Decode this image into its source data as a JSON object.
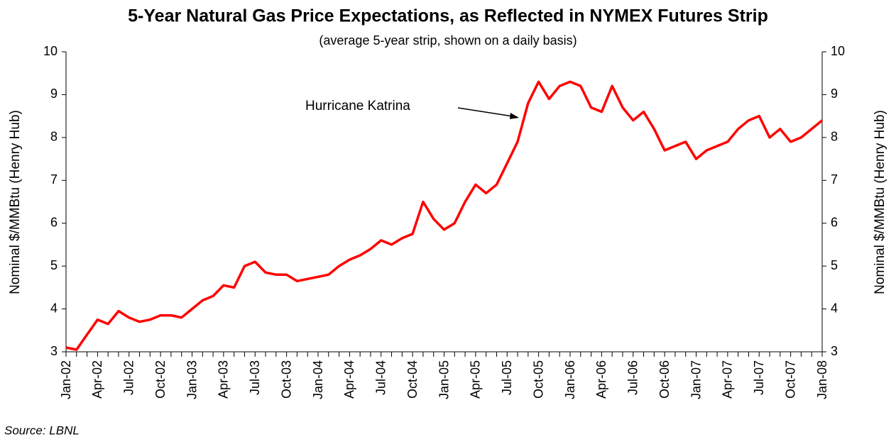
{
  "chart_data": {
    "type": "line",
    "title": "5-Year Natural Gas Price Expectations, as Reflected in NYMEX Futures Strip",
    "subtitle": "(average 5-year strip, shown on a daily basis)",
    "ylabel": "Nominal $/MMBtu (Henry Hub)",
    "y2label": "Nominal $/MMBtu (Henry Hub)",
    "annotation": "Hurricane Katrina",
    "source": "Source:  LBNL",
    "color": "#ff0000",
    "categories": [
      "Jan-02",
      null,
      null,
      "Apr-02",
      null,
      null,
      "Jul-02",
      null,
      null,
      "Oct-02",
      null,
      null,
      "Jan-03",
      null,
      null,
      "Apr-03",
      null,
      null,
      "Jul-03",
      null,
      null,
      "Oct-03",
      null,
      null,
      "Jan-04",
      null,
      null,
      "Apr-04",
      null,
      null,
      "Jul-04",
      null,
      null,
      "Oct-04",
      null,
      null,
      "Jan-05",
      null,
      null,
      "Apr-05",
      null,
      null,
      "Jul-05",
      null,
      null,
      "Oct-05",
      null,
      null,
      "Jan-06",
      null,
      null,
      "Apr-06",
      null,
      null,
      "Jul-06",
      null,
      null,
      "Oct-06",
      null,
      null,
      "Jan-07",
      null,
      null,
      "Apr-07",
      null,
      null,
      "Jul-07",
      null,
      null,
      "Oct-07",
      null,
      null,
      "Jan-08"
    ],
    "values": [
      3.1,
      3.05,
      3.4,
      3.75,
      3.65,
      3.95,
      3.8,
      3.7,
      3.75,
      3.85,
      3.85,
      3.8,
      4.0,
      4.2,
      4.3,
      4.55,
      4.5,
      5.0,
      5.1,
      4.85,
      4.8,
      4.8,
      4.65,
      4.7,
      4.75,
      4.8,
      5.0,
      5.15,
      5.25,
      5.4,
      5.6,
      5.5,
      5.65,
      5.75,
      6.5,
      6.1,
      5.85,
      6.0,
      6.5,
      6.9,
      6.7,
      6.9,
      7.4,
      7.9,
      8.8,
      9.3,
      8.9,
      9.2,
      9.3,
      9.2,
      8.7,
      8.6,
      9.2,
      8.7,
      8.4,
      8.6,
      8.2,
      7.7,
      7.8,
      7.9,
      7.5,
      7.7,
      7.8,
      7.9,
      8.2,
      8.4,
      8.5,
      8.0,
      8.2,
      7.9,
      8.0,
      8.2,
      8.4
    ],
    "ylim": [
      3,
      10
    ],
    "yticks": [
      3,
      4,
      5,
      6,
      7,
      8,
      9,
      10
    ],
    "y2lim": [
      3,
      10
    ],
    "y2ticks": [
      3,
      4,
      5,
      6,
      7,
      8,
      9,
      10
    ]
  }
}
